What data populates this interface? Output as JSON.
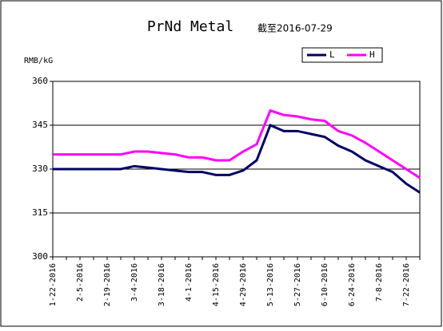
{
  "chart_data": {
    "type": "line",
    "title": "PrNd Metal",
    "subtitle": "截至2016-07-29",
    "y_label": "RMB/kG",
    "categories": [
      "1-22-2016",
      null,
      "2-5-2016",
      null,
      "2-19-2016",
      null,
      "3-4-2016",
      null,
      "3-18-2016",
      null,
      "4-1-2016",
      null,
      "4-15-2016",
      null,
      "4-29-2016",
      null,
      "5-13-2016",
      null,
      "5-27-2016",
      null,
      "6-10-2016",
      null,
      "6-24-2016",
      null,
      "7-8-2016",
      null,
      "7-22-2016",
      null
    ],
    "series": [
      {
        "name": "L",
        "color": "#000066",
        "values": [
          330,
          330,
          330,
          330,
          330,
          330,
          331,
          330.5,
          330,
          329.5,
          329,
          329,
          328,
          328,
          329.5,
          333,
          345,
          343,
          343,
          342,
          341,
          338,
          336,
          333,
          331,
          329,
          325,
          322
        ]
      },
      {
        "name": "H",
        "color": "#ff00ff",
        "values": [
          335,
          335,
          335,
          335,
          335,
          335,
          336,
          336,
          335.5,
          335,
          334,
          334,
          333,
          333,
          336,
          338.5,
          350,
          348.5,
          348,
          347,
          346.5,
          343,
          341.5,
          339,
          336,
          333,
          330,
          327
        ]
      }
    ],
    "ylim": [
      300,
      360
    ],
    "yticks": [
      300,
      315,
      330,
      345,
      360
    ],
    "grid": true,
    "legend": "top-right"
  }
}
